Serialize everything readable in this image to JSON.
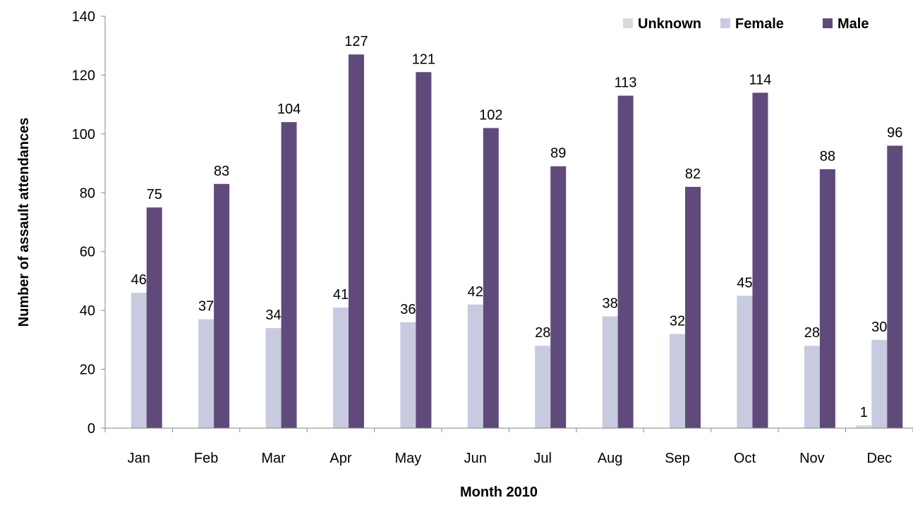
{
  "chart_data": {
    "type": "bar",
    "title": "",
    "xlabel": "Month 2010",
    "ylabel": "Number of assault attendances",
    "categories": [
      "Jan",
      "Feb",
      "Mar",
      "Apr",
      "May",
      "Jun",
      "Jul",
      "Aug",
      "Sep",
      "Oct",
      "Nov",
      "Dec"
    ],
    "series": [
      {
        "name": "Unknown",
        "color": "#d9d9d9",
        "values": [
          0,
          0,
          0,
          0,
          0,
          0,
          0,
          0,
          0,
          0,
          0,
          1
        ],
        "labels": [
          "",
          "",
          "",
          "",
          "",
          "",
          "",
          "",
          "",
          "",
          "",
          "1"
        ]
      },
      {
        "name": "Female",
        "color": "#c8cbe0",
        "values": [
          46,
          37,
          34,
          41,
          36,
          42,
          28,
          38,
          32,
          45,
          28,
          30
        ],
        "labels": [
          "46",
          "37",
          "34",
          "41",
          "36",
          "42",
          "28",
          "38",
          "32",
          "45",
          "28",
          "30"
        ]
      },
      {
        "name": "Male",
        "color": "#604a7b",
        "values": [
          75,
          83,
          104,
          127,
          121,
          102,
          89,
          113,
          82,
          114,
          88,
          96
        ],
        "labels": [
          "75",
          "83",
          "104",
          "127",
          "121",
          "102",
          "89",
          "113",
          "82",
          "114",
          "88",
          "96"
        ]
      }
    ],
    "ylim": [
      0,
      140
    ],
    "yticks": [
      0,
      20,
      40,
      60,
      80,
      100,
      120,
      140
    ],
    "grid": false,
    "legend": "top-right"
  }
}
